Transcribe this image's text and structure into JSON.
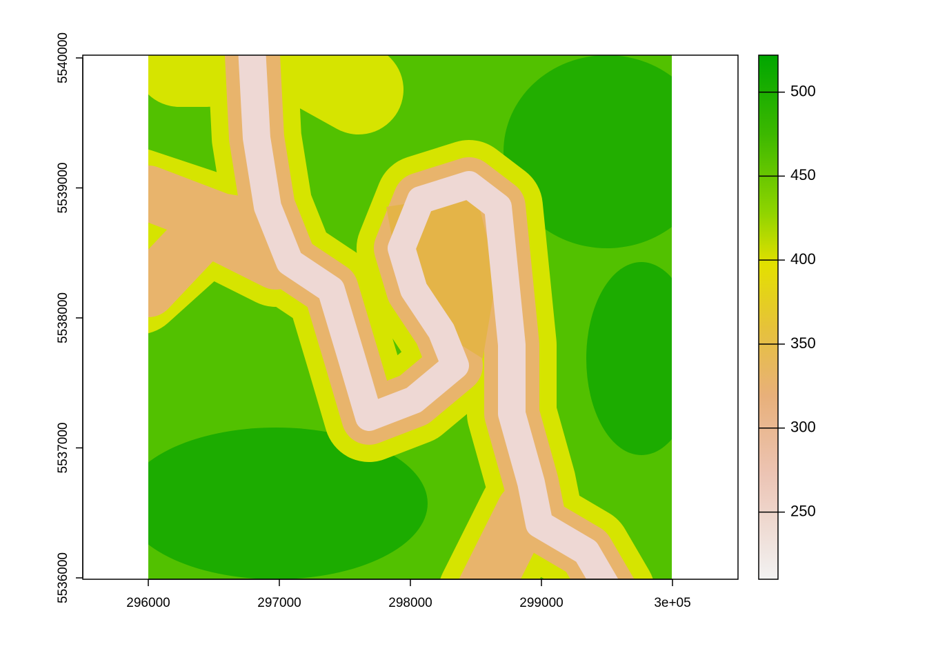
{
  "chart_data": {
    "type": "raster",
    "xlim": [
      295500,
      300500
    ],
    "xticks": [
      296000,
      297000,
      298000,
      299000,
      {
        "value": 300000,
        "label": "3e+05"
      }
    ],
    "ylim": [
      5536000,
      5540000
    ],
    "yticks": [
      5536000,
      5537000,
      5538000,
      5539000,
      5540000
    ],
    "raster_xlim": [
      296000,
      300000
    ],
    "legend": {
      "zlim": [
        210,
        522
      ],
      "ticks": [
        250,
        300,
        350,
        400,
        450,
        500
      ]
    }
  }
}
